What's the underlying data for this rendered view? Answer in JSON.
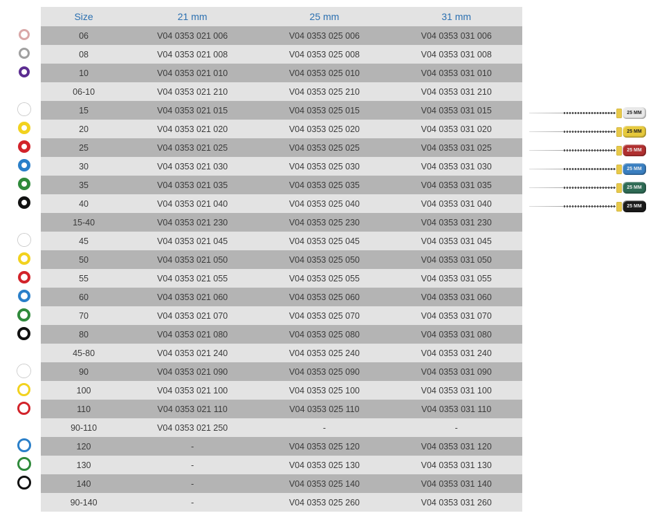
{
  "table": {
    "headers": [
      "Size",
      "21 mm",
      "25 mm",
      "31 mm"
    ],
    "header_color": "#2a6fb0",
    "row_dark_bg": "#b4b4b4",
    "row_light_bg": "#e3e3e3",
    "text_color": "#3a3a3a",
    "font_size_header": 14,
    "font_size_cell": 12.5,
    "rows": [
      {
        "shade": "dark",
        "icon": {
          "outer": 16,
          "border": 3,
          "color": "#d9a7a7"
        },
        "size": "06",
        "c21": "V04 0353 021 006",
        "c25": "V04 0353 025 006",
        "c31": "V04 0353 031 006"
      },
      {
        "shade": "light",
        "icon": {
          "outer": 16,
          "border": 3,
          "color": "#a0a0a0"
        },
        "size": "08",
        "c21": "V04 0353 021 008",
        "c25": "V04 0353 025 008",
        "c31": "V04 0353 031 008"
      },
      {
        "shade": "dark",
        "icon": {
          "outer": 16,
          "border": 4,
          "color": "#5c2d91"
        },
        "size": "10",
        "c21": "V04 0353 021 010",
        "c25": "V04 0353 025 010",
        "c31": "V04 0353 031 010"
      },
      {
        "shade": "light",
        "icon": null,
        "size": "06-10",
        "c21": "V04 0353 021 210",
        "c25": "V04 0353 025 210",
        "c31": "V04 0353 031 210"
      },
      {
        "shade": "dark",
        "icon": {
          "outer": 18,
          "border": 5,
          "color": "#ffffff"
        },
        "size": "15",
        "c21": "V04 0353 021 015",
        "c25": "V04 0353 025 015",
        "c31": "V04 0353 031 015"
      },
      {
        "shade": "light",
        "icon": {
          "outer": 18,
          "border": 5,
          "color": "#f2d21f"
        },
        "size": "20",
        "c21": "V04 0353 021 020",
        "c25": "V04 0353 025 020",
        "c31": "V04 0353 031 020"
      },
      {
        "shade": "dark",
        "icon": {
          "outer": 18,
          "border": 5,
          "color": "#d2232a"
        },
        "size": "25",
        "c21": "V04 0353 021 025",
        "c25": "V04 0353 025 025",
        "c31": "V04 0353 031 025"
      },
      {
        "shade": "light",
        "icon": {
          "outer": 18,
          "border": 5,
          "color": "#2a7fc9"
        },
        "size": "30",
        "c21": "V04 0353 021 030",
        "c25": "V04 0353 025 030",
        "c31": "V04 0353 031 030"
      },
      {
        "shade": "dark",
        "icon": {
          "outer": 18,
          "border": 5,
          "color": "#2f8a3b"
        },
        "size": "35",
        "c21": "V04 0353 021 035",
        "c25": "V04 0353 025 035",
        "c31": "V04 0353 031 035"
      },
      {
        "shade": "light",
        "icon": {
          "outer": 18,
          "border": 5,
          "color": "#111111"
        },
        "size": "40",
        "c21": "V04 0353 021 040",
        "c25": "V04 0353 025 040",
        "c31": "V04 0353 031 040"
      },
      {
        "shade": "dark",
        "icon": null,
        "size": "15-40",
        "c21": "V04 0353 021 230",
        "c25": "V04 0353 025 230",
        "c31": "V04 0353 031 230"
      },
      {
        "shade": "light",
        "icon": {
          "outer": 18,
          "border": 4,
          "color": "#ffffff"
        },
        "size": "45",
        "c21": "V04 0353 021 045",
        "c25": "V04 0353 025 045",
        "c31": "V04 0353 031 045"
      },
      {
        "shade": "dark",
        "icon": {
          "outer": 18,
          "border": 4,
          "color": "#f2d21f"
        },
        "size": "50",
        "c21": "V04 0353 021 050",
        "c25": "V04 0353 025 050",
        "c31": "V04 0353 031 050"
      },
      {
        "shade": "light",
        "icon": {
          "outer": 18,
          "border": 4,
          "color": "#d2232a"
        },
        "size": "55",
        "c21": "V04 0353 021 055",
        "c25": "V04 0353 025 055",
        "c31": "V04 0353 031 055"
      },
      {
        "shade": "dark",
        "icon": {
          "outer": 18,
          "border": 4,
          "color": "#2a7fc9"
        },
        "size": "60",
        "c21": "V04 0353 021 060",
        "c25": "V04 0353 025 060",
        "c31": "V04 0353 031 060"
      },
      {
        "shade": "light",
        "icon": {
          "outer": 19,
          "border": 4,
          "color": "#2f8a3b"
        },
        "size": "70",
        "c21": "V04 0353 021 070",
        "c25": "V04 0353 025 070",
        "c31": "V04 0353 031 070"
      },
      {
        "shade": "dark",
        "icon": {
          "outer": 19,
          "border": 4,
          "color": "#111111"
        },
        "size": "80",
        "c21": "V04 0353 021 080",
        "c25": "V04 0353 025 080",
        "c31": "V04 0353 031 080"
      },
      {
        "shade": "light",
        "icon": null,
        "size": "45-80",
        "c21": "V04 0353 021 240",
        "c25": "V04 0353 025 240",
        "c31": "V04 0353 031 240"
      },
      {
        "shade": "dark",
        "icon": {
          "outer": 19,
          "border": 3,
          "color": "#ffffff"
        },
        "size": "90",
        "c21": "V04 0353 021 090",
        "c25": "V04 0353 025 090",
        "c31": "V04 0353 031 090"
      },
      {
        "shade": "light",
        "icon": {
          "outer": 19,
          "border": 3,
          "color": "#f2d21f"
        },
        "size": "100",
        "c21": "V04 0353 021 100",
        "c25": "V04 0353 025 100",
        "c31": "V04 0353 031 100"
      },
      {
        "shade": "dark",
        "icon": {
          "outer": 19,
          "border": 3,
          "color": "#d2232a"
        },
        "size": "110",
        "c21": "V04 0353 021 110",
        "c25": "V04 0353 025 110",
        "c31": "V04 0353 031 110"
      },
      {
        "shade": "light",
        "icon": null,
        "size": "90-110",
        "c21": "V04 0353 021 250",
        "c25": "-",
        "c31": "-"
      },
      {
        "shade": "dark",
        "icon": {
          "outer": 20,
          "border": 3,
          "color": "#2a7fc9"
        },
        "size": "120",
        "c21": "-",
        "c25": "V04 0353 025 120",
        "c31": "V04 0353 031 120"
      },
      {
        "shade": "light",
        "icon": {
          "outer": 20,
          "border": 3,
          "color": "#2f8a3b"
        },
        "size": "130",
        "c21": "-",
        "c25": "V04 0353 025 130",
        "c31": "V04 0353 031 130"
      },
      {
        "shade": "dark",
        "icon": {
          "outer": 20,
          "border": 3,
          "color": "#111111"
        },
        "size": "140",
        "c21": "-",
        "c25": "V04 0353 025 140",
        "c31": "V04 0353 031 140"
      },
      {
        "shade": "light",
        "icon": null,
        "size": "90-140",
        "c21": "-",
        "c25": "V04 0353 025 260",
        "c31": "V04 0353 031 260"
      }
    ]
  },
  "files_image": {
    "label": "25 MM",
    "handles": [
      {
        "bg": "#e8e8e8",
        "text": "dark"
      },
      {
        "bg": "#e6c93c",
        "text": "dark"
      },
      {
        "bg": "#b03030",
        "text": "light"
      },
      {
        "bg": "#3a7fc0",
        "text": "light"
      },
      {
        "bg": "#2f6b55",
        "text": "light"
      },
      {
        "bg": "#1a1a1a",
        "text": "light"
      }
    ],
    "collar_color": "#e8c94a"
  }
}
